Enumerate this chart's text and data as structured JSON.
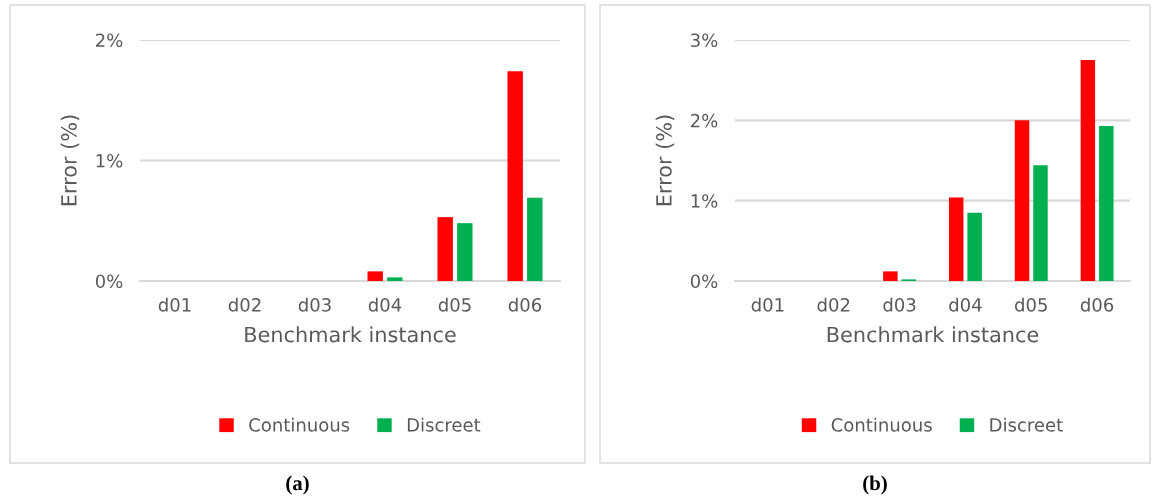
{
  "chart_data": [
    {
      "type": "bar",
      "xlabel": "Benchmark instance",
      "ylabel": "Error (%)",
      "categories": [
        "d01",
        "d02",
        "d03",
        "d04",
        "d05",
        "d06"
      ],
      "series": [
        {
          "name": "Continuous",
          "color": "#ff0000",
          "values": [
            0,
            0,
            0,
            0.08,
            0.53,
            1.74
          ]
        },
        {
          "name": "Discreet",
          "color": "#00b050",
          "values": [
            0,
            0,
            0,
            0.03,
            0.48,
            0.69
          ]
        }
      ],
      "ylim": [
        0,
        2
      ],
      "yticks": [
        {
          "value": 0,
          "label": "0%"
        },
        {
          "value": 1,
          "label": "1%"
        },
        {
          "value": 2,
          "label": "2%"
        }
      ],
      "grid": "y",
      "legend": "bottom",
      "annotations": [
        "(a)"
      ]
    },
    {
      "type": "bar",
      "xlabel": "Benchmark instance",
      "ylabel": "Error (%)",
      "categories": [
        "d01",
        "d02",
        "d03",
        "d04",
        "d05",
        "d06"
      ],
      "series": [
        {
          "name": "Continuous",
          "color": "#ff0000",
          "values": [
            0,
            0,
            0.12,
            1.04,
            2.0,
            2.75
          ]
        },
        {
          "name": "Discreet",
          "color": "#00b050",
          "values": [
            0,
            0,
            0.02,
            0.85,
            1.44,
            1.93
          ]
        }
      ],
      "ylim": [
        0,
        3
      ],
      "yticks": [
        {
          "value": 0,
          "label": "0%"
        },
        {
          "value": 1,
          "label": "1%"
        },
        {
          "value": 2,
          "label": "2%"
        },
        {
          "value": 3,
          "label": "3%"
        }
      ],
      "grid": "y",
      "legend": "bottom",
      "annotations": [
        "(b)"
      ]
    }
  ]
}
